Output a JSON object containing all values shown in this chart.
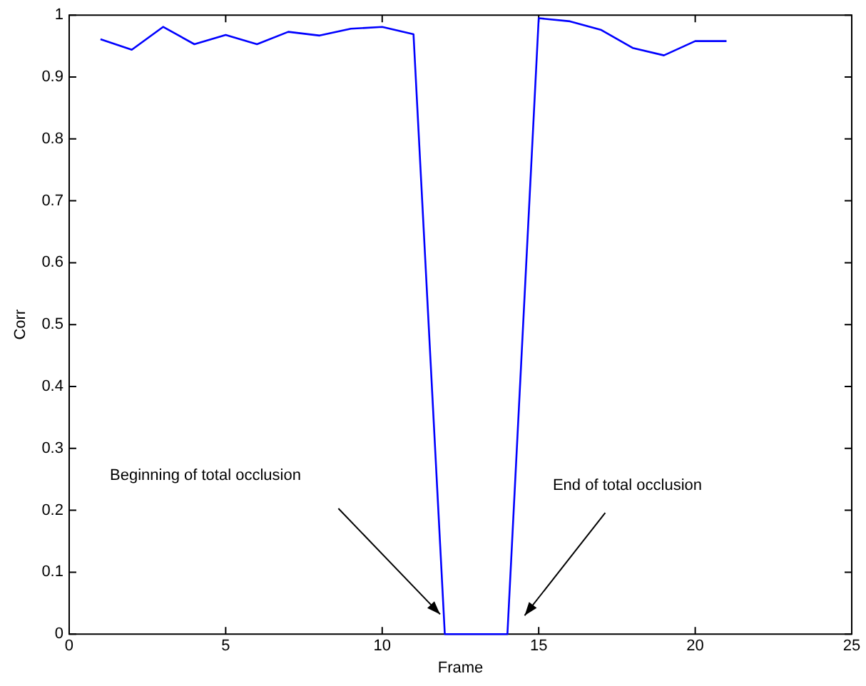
{
  "chart_data": {
    "type": "line",
    "xlabel": "Frame",
    "ylabel": "Corr",
    "x": [
      1,
      2,
      3,
      4,
      5,
      6,
      7,
      8,
      9,
      10,
      11,
      12,
      13,
      14,
      15,
      16,
      17,
      18,
      19,
      20,
      21
    ],
    "series": [
      {
        "color": "#0000ff",
        "values": [
          0.961,
          0.944,
          0.981,
          0.953,
          0.968,
          0.953,
          0.973,
          0.967,
          0.978,
          0.981,
          0.969,
          0,
          0,
          0,
          0.995,
          0.99,
          0.976,
          0.947,
          0.935,
          0.958,
          0.958
        ]
      }
    ],
    "xlim": [
      0,
      25
    ],
    "xticks": [
      0,
      5,
      10,
      15,
      20,
      25
    ],
    "ylim": [
      0,
      1
    ],
    "yticks": [
      0,
      0.1,
      0.2,
      0.3,
      0.4,
      0.5,
      0.6,
      0.7,
      0.8,
      0.9,
      1
    ],
    "grid": false,
    "legend": false,
    "marker": "none",
    "line_style": "solid",
    "annotations": [
      "Beginning of total occlusion",
      "End of total occlusion"
    ]
  }
}
